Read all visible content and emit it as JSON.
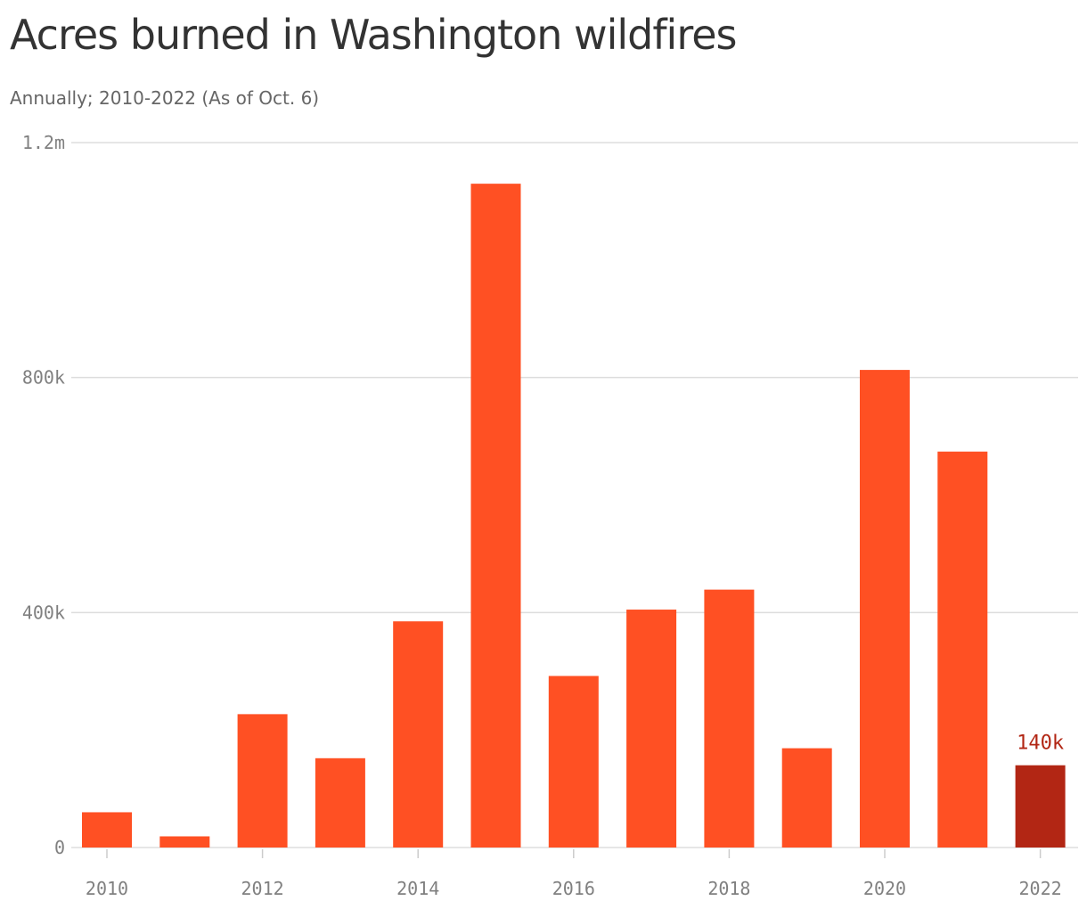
{
  "title": "Acres burned in Washington wildfires",
  "subtitle": "Annually; 2010-2022 (As of Oct. 6)",
  "colors": {
    "bar": "#ff5023",
    "highlight": "#b22614",
    "grid": "#dddddd",
    "axis_text": "#808080",
    "title": "#333333",
    "subtitle": "#666666"
  },
  "chart_data": {
    "type": "bar",
    "title": "Acres burned in Washington wildfires",
    "subtitle": "Annually; 2010-2022 (As of Oct. 6)",
    "xlabel": "",
    "ylabel": "",
    "categories": [
      2010,
      2011,
      2012,
      2013,
      2014,
      2015,
      2016,
      2017,
      2018,
      2019,
      2020,
      2021,
      2022
    ],
    "values": [
      60000,
      19000,
      227000,
      152000,
      385000,
      1130000,
      292000,
      405000,
      439000,
      169000,
      813000,
      674000,
      140000
    ],
    "ylim": [
      0,
      1200000
    ],
    "y_ticks": [
      {
        "value": 0,
        "label": "0"
      },
      {
        "value": 400000,
        "label": "400k"
      },
      {
        "value": 800000,
        "label": "800k"
      },
      {
        "value": 1200000,
        "label": "1.2m"
      }
    ],
    "x_tick_labels": [
      "2010",
      "2012",
      "2014",
      "2016",
      "2018",
      "2020",
      "2022"
    ],
    "highlight": {
      "category": 2022,
      "label": "140k"
    },
    "grid": true,
    "legend": false
  }
}
